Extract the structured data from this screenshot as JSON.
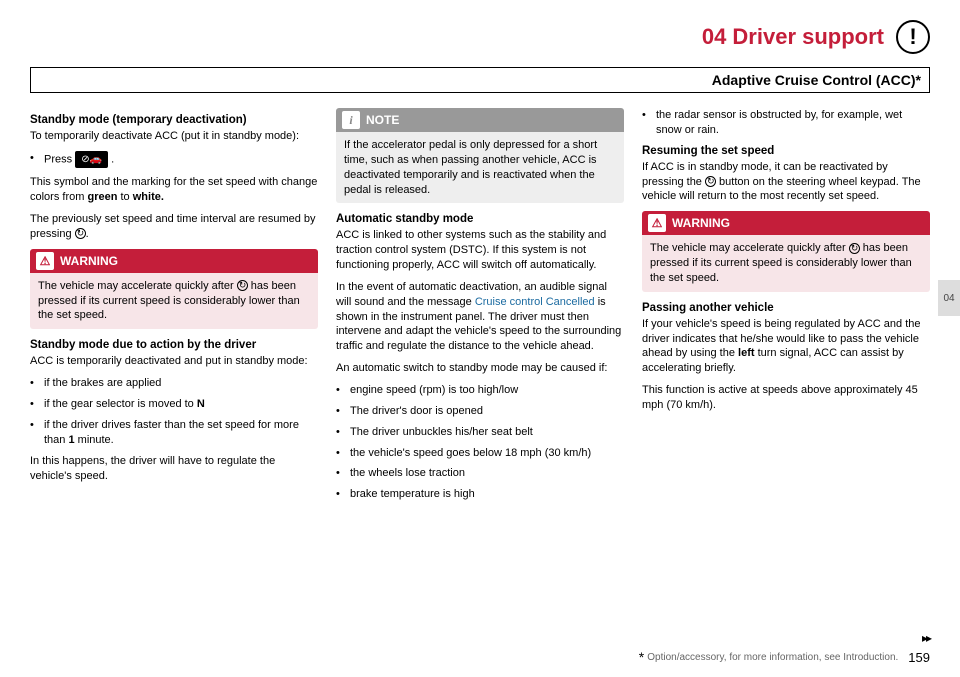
{
  "header": {
    "chapter": "04  Driver support",
    "badge": "!",
    "subtitle": "Adaptive Cruise Control (ACC)*",
    "sideTab": "04"
  },
  "col1": {
    "s1_head": "Standby mode (temporary deactivation)",
    "s1_p1": "To temporarily deactivate ACC (put it in standby mode):",
    "s1_li1a": "Press ",
    "s1_li1_icon": "⊘🚗",
    "s1_li1b": ".",
    "s1_p2a": "This symbol and the marking for the set speed with change colors from ",
    "s1_p2_green": "green",
    "s1_p2b": " to ",
    "s1_p2_white": "white.",
    "s1_p3a": "The previously set speed and time interval are resumed by pressing ",
    "s1_p3b": ".",
    "warn_label": "WARNING",
    "warn_icon": "⚠",
    "warn_body_a": "The vehicle may accelerate quickly after ",
    "warn_body_b": " has been pressed if its current speed is considerably lower than the set speed.",
    "s2_head": "Standby mode due to action by the driver",
    "s2_p1": "ACC is temporarily deactivated and put in standby mode:",
    "s2_li1": "if the brakes are applied",
    "s2_li2a": "if the gear selector is moved to ",
    "s2_li2_n": "N",
    "s2_li3a": "if the driver drives faster than the set speed for more than ",
    "s2_li3_one": "1",
    "s2_li3b": " minute.",
    "s2_p2": "In this happens, the driver will have to regulate the vehicle's speed."
  },
  "col2": {
    "note_label": "NOTE",
    "note_icon": "i",
    "note_body": "If the accelerator pedal is only depressed for a short time, such as when passing another vehicle, ACC is deactivated temporarily and is reactivated when the pedal is released.",
    "s1_head": "Automatic standby mode",
    "s1_p1": "ACC is linked to other systems such as the stability and traction control system (DSTC). If this system is not functioning properly, ACC will switch off automatically.",
    "s1_p2a": "In the event of automatic deactivation, an audible signal will sound and the message ",
    "s1_p2_msg": "Cruise control Cancelled",
    "s1_p2b": " is shown in the instrument panel. The driver must then intervene and adapt the vehicle's speed to the surrounding traffic and regulate the distance to the vehicle ahead.",
    "s1_p3": "An automatic switch to standby mode may be caused if:",
    "li1": "engine speed (rpm) is too high/low",
    "li2": "The driver's door is opened",
    "li3": "The driver unbuckles his/her seat belt",
    "li4": "the vehicle's speed goes below 18 mph (30 km/h)",
    "li5": "the wheels lose traction",
    "li6": "brake temperature is high"
  },
  "col3": {
    "li_top": "the radar sensor is obstructed by, for example, wet snow or rain.",
    "s1_head": "Resuming the set speed",
    "s1_p1a": "If ACC is in standby mode, it can be reactivated by pressing the ",
    "s1_p1b": " button on the steering wheel keypad. The vehicle will return to the most recently set speed.",
    "warn_label": "WARNING",
    "warn_icon": "⚠",
    "warn_body_a": "The vehicle may accelerate quickly after ",
    "warn_body_b": " has been pressed if its current speed is considerably lower than the set speed.",
    "s2_head": "Passing another vehicle",
    "s2_p1a": "If your vehicle's speed is being regulated by ACC and the driver indicates that he/she would like to pass the vehicle ahead by using the ",
    "s2_p1_left": "left",
    "s2_p1b": " turn signal, ACC can assist by accelerating briefly.",
    "s2_p2": "This function is active at speeds above approximately 45 mph (70 km/h)."
  },
  "footer": {
    "asterisk": "*",
    "text": " Option/accessory, for more information, see Introduction.",
    "page": "159",
    "arrows": "▸▸"
  }
}
